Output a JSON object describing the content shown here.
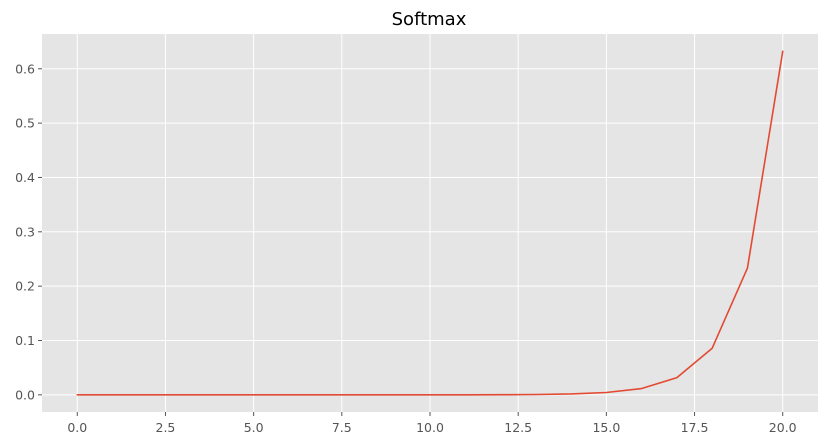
{
  "chart_data": {
    "type": "line",
    "title": "Softmax",
    "xlabel": "",
    "ylabel": "",
    "xlim": [
      -1,
      21
    ],
    "ylim": [
      -0.0316,
      0.664
    ],
    "grid": true,
    "x_ticks": [
      0,
      2.5,
      5,
      7.5,
      10,
      12.5,
      15,
      17.5,
      20
    ],
    "x_tick_labels": [
      "0.0",
      "2.5",
      "5.0",
      "7.5",
      "10.0",
      "12.5",
      "15.0",
      "17.5",
      "20.0"
    ],
    "y_ticks": [
      0,
      0.1,
      0.2,
      0.3,
      0.4,
      0.5,
      0.6
    ],
    "y_tick_labels": [
      "0.0",
      "0.1",
      "0.2",
      "0.3",
      "0.4",
      "0.5",
      "0.6"
    ],
    "x": [
      0,
      1,
      2,
      3,
      4,
      5,
      6,
      7,
      8,
      9,
      10,
      11,
      12,
      13,
      14,
      15,
      16,
      17,
      18,
      19,
      20
    ],
    "series": [
      {
        "color": "#e24a33",
        "values": [
          0.0,
          0.0,
          0.0,
          0.0,
          0.0,
          0.0,
          0.0,
          0.0,
          0.0,
          0.0,
          0.0,
          0.0001,
          0.0002,
          0.0006,
          0.0016,
          0.0043,
          0.0116,
          0.0316,
          0.0858,
          0.2333,
          0.6321
        ]
      }
    ]
  }
}
